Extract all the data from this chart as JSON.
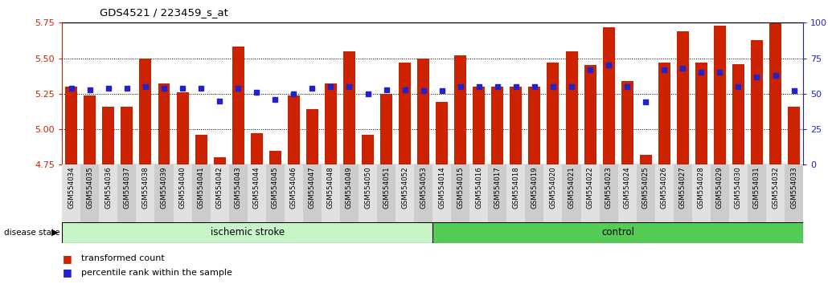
{
  "title": "GDS4521 / 223459_s_at",
  "samples": [
    "GSM554034",
    "GSM554035",
    "GSM554036",
    "GSM554037",
    "GSM554038",
    "GSM554039",
    "GSM554040",
    "GSM554041",
    "GSM554042",
    "GSM554043",
    "GSM554044",
    "GSM554045",
    "GSM554046",
    "GSM554047",
    "GSM554048",
    "GSM554049",
    "GSM554050",
    "GSM554051",
    "GSM554052",
    "GSM554053",
    "GSM554014",
    "GSM554015",
    "GSM554016",
    "GSM554017",
    "GSM554018",
    "GSM554019",
    "GSM554020",
    "GSM554021",
    "GSM554022",
    "GSM554023",
    "GSM554024",
    "GSM554025",
    "GSM554026",
    "GSM554027",
    "GSM554028",
    "GSM554029",
    "GSM554030",
    "GSM554031",
    "GSM554032",
    "GSM554033"
  ],
  "bar_values": [
    5.3,
    5.24,
    5.16,
    5.16,
    5.5,
    5.32,
    5.26,
    4.96,
    4.8,
    5.58,
    4.97,
    4.85,
    5.24,
    5.14,
    5.32,
    5.55,
    4.96,
    5.25,
    5.47,
    5.5,
    5.19,
    5.52,
    5.3,
    5.3,
    5.3,
    5.3,
    5.47,
    5.55,
    5.45,
    5.72,
    5.34,
    4.82,
    5.47,
    5.69,
    5.47,
    5.73,
    5.46,
    5.63,
    5.75,
    5.16
  ],
  "percentile_values": [
    54,
    53,
    54,
    54,
    55,
    54,
    54,
    54,
    45,
    54,
    51,
    46,
    50,
    54,
    55,
    55,
    50,
    53,
    53,
    52,
    52,
    55,
    55,
    55,
    55,
    55,
    55,
    55,
    67,
    70,
    55,
    44,
    67,
    68,
    65,
    65,
    55,
    62,
    63,
    52
  ],
  "group_labels": [
    "ischemic stroke",
    "control"
  ],
  "group_sizes": [
    20,
    20
  ],
  "group_color_1": "#c8f5c8",
  "group_color_2": "#55cc55",
  "ylim_left": [
    4.75,
    5.75
  ],
  "ylim_right": [
    0,
    100
  ],
  "yticks_left": [
    4.75,
    5.0,
    5.25,
    5.5,
    5.75
  ],
  "yticks_right": [
    0,
    25,
    50,
    75,
    100
  ],
  "bar_color": "#cc2200",
  "dot_color": "#2222cc",
  "bar_bottom": 4.75,
  "disease_state_label": "disease state",
  "legend_bar_label": "transformed count",
  "legend_dot_label": "percentile rank within the sample"
}
